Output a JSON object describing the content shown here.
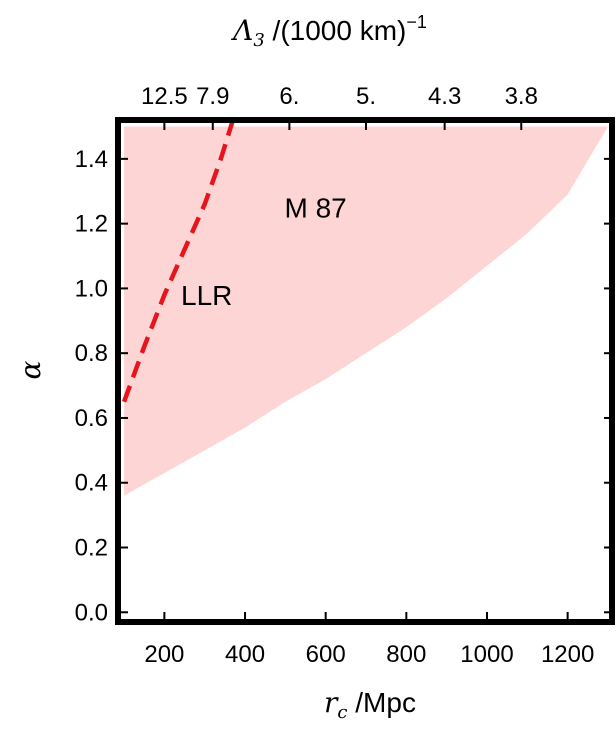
{
  "chart_data": {
    "type": "area",
    "xlabel": {
      "symbol": "r",
      "subscript": "c",
      "unit": " /Mpc"
    },
    "ylabel": {
      "symbol": "α"
    },
    "top_axis_label": {
      "symbol": "Λ",
      "subscript": "3",
      "unit": " /(1000 km)",
      "exponent": "−1"
    },
    "xlim": [
      85,
      1310
    ],
    "ylim": [
      -0.03,
      1.52
    ],
    "x_ticks": [
      200,
      400,
      600,
      800,
      1000,
      1200
    ],
    "x_tick_labels": [
      "200",
      "400",
      "600",
      "800",
      "1000",
      "1200"
    ],
    "y_ticks": [
      0.0,
      0.2,
      0.4,
      0.6,
      0.8,
      1.0,
      1.2,
      1.4
    ],
    "y_tick_labels": [
      "0.0",
      "0.2",
      "0.4",
      "0.6",
      "0.8",
      "1.0",
      "1.2",
      "1.4"
    ],
    "top_ticks": [
      {
        "x": 200,
        "label": "12.5"
      },
      {
        "x": 320,
        "label": "7.9"
      },
      {
        "x": 510,
        "label": "6."
      },
      {
        "x": 700,
        "label": "5."
      },
      {
        "x": 895,
        "label": "4.3"
      },
      {
        "x": 1085,
        "label": "3.8"
      }
    ],
    "series": [
      {
        "name": "M 87",
        "kind": "region",
        "upper": [
          [
            100,
            1.5
          ],
          [
            1300,
            1.5
          ]
        ],
        "lower": [
          [
            100,
            0.36
          ],
          [
            200,
            0.43
          ],
          [
            300,
            0.5
          ],
          [
            400,
            0.57
          ],
          [
            500,
            0.65
          ],
          [
            600,
            0.72
          ],
          [
            700,
            0.8
          ],
          [
            800,
            0.88
          ],
          [
            900,
            0.97
          ],
          [
            1000,
            1.07
          ],
          [
            1100,
            1.17
          ],
          [
            1200,
            1.29
          ],
          [
            1300,
            1.5
          ]
        ],
        "color": "#fdd5d5"
      },
      {
        "name": "LLR",
        "kind": "line",
        "style": "dashed",
        "points": [
          [
            100,
            0.65
          ],
          [
            150,
            0.82
          ],
          [
            200,
            0.98
          ],
          [
            250,
            1.12
          ],
          [
            300,
            1.26
          ],
          [
            340,
            1.4
          ],
          [
            370,
            1.52
          ]
        ],
        "color": "#e8141b"
      }
    ],
    "annotations": [
      {
        "text": "M 87",
        "x": 575,
        "y": 1.25
      },
      {
        "text": "LLR",
        "x": 305,
        "y": 0.98
      }
    ],
    "grid": false,
    "legend": "none"
  }
}
